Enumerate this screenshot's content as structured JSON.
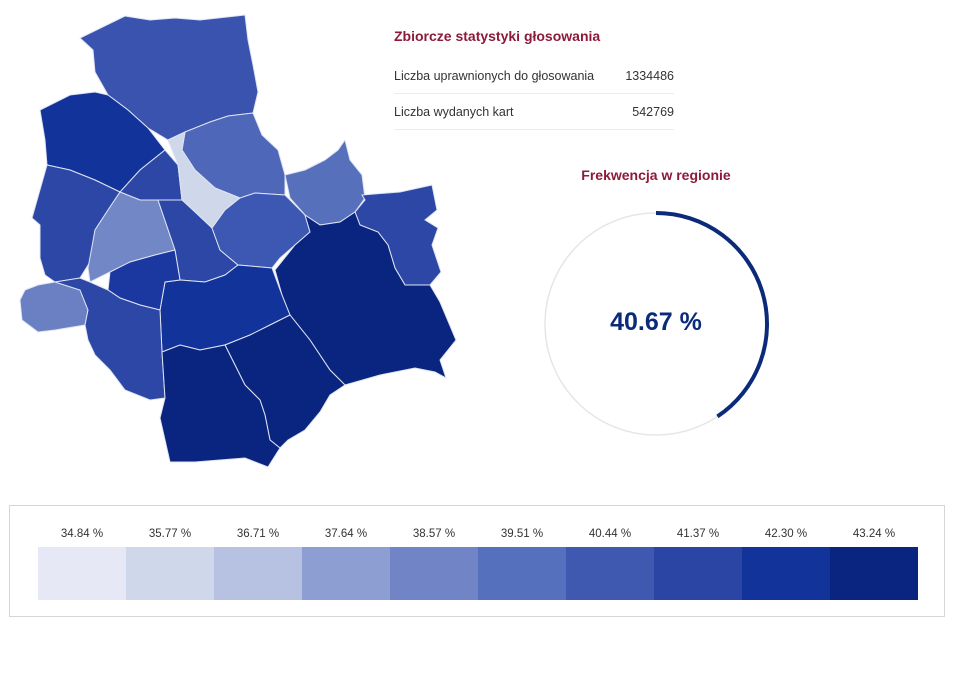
{
  "map": {
    "regions": [
      {
        "id": "bielany",
        "color": "#3953ae"
      },
      {
        "id": "bemowo",
        "color": "#12339a"
      },
      {
        "id": "zoliborz",
        "color": "#2d47a7"
      },
      {
        "id": "bialoleka",
        "color": "#4e67b9"
      },
      {
        "id": "praga-polnoc-small",
        "color": "#cfd7eb"
      },
      {
        "id": "targowek",
        "color": "#5670bc"
      },
      {
        "id": "wola",
        "color": "#2d47a7"
      },
      {
        "id": "ochota",
        "color": "#7287c6"
      },
      {
        "id": "srodmiescie",
        "color": "#2d47a7"
      },
      {
        "id": "praga-poludnie",
        "color": "#3d58b2"
      },
      {
        "id": "rembertow",
        "color": "#2d47a7"
      },
      {
        "id": "wesola",
        "color": "#0a2580"
      },
      {
        "id": "wawer",
        "color": "#0a2580"
      },
      {
        "id": "mokotow",
        "color": "#12339a"
      },
      {
        "id": "ochota-south",
        "color": "#1b38a0"
      },
      {
        "id": "wlochy",
        "color": "#6a80c3"
      },
      {
        "id": "ursus",
        "color": "#2d47a7"
      },
      {
        "id": "wilanow",
        "color": "#0a2580"
      },
      {
        "id": "ursynow",
        "color": "#0a2580"
      }
    ]
  },
  "stats": {
    "title": "Zbiorcze statystyki głosowania",
    "rows": [
      {
        "label": "Liczba uprawnionych do głosowania",
        "value": "1334486"
      },
      {
        "label": "Liczba wydanych kart",
        "value": "542769"
      }
    ]
  },
  "turnout": {
    "title": "Frekwencja w regionie",
    "value_text": "40.67 %",
    "fraction": 0.4067,
    "arc_color": "#0b2a7a",
    "track_color": "#e6e6e6"
  },
  "legend": {
    "labels": [
      "34.84 %",
      "35.77 %",
      "36.71 %",
      "37.64 %",
      "38.57 %",
      "39.51 %",
      "40.44 %",
      "41.37 %",
      "42.30 %",
      "43.24 %"
    ],
    "colors": [
      "#e6e9f5",
      "#cfd7eb",
      "#b7c2e2",
      "#8d9fd2",
      "#7084c6",
      "#5570bc",
      "#3f58b0",
      "#2b45a5",
      "#12339a",
      "#0a2580"
    ]
  }
}
